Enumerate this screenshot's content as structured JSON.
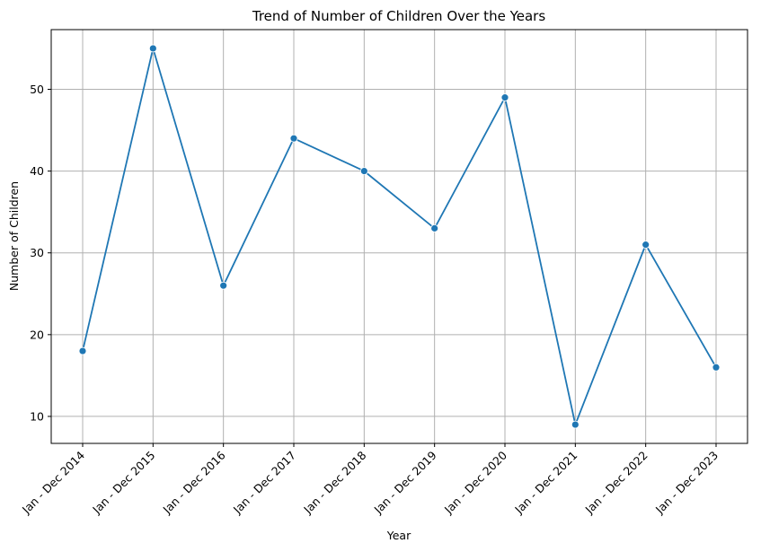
{
  "chart_data": {
    "type": "line",
    "title": "Trend of Number of Children Over the Years",
    "xlabel": "Year",
    "ylabel": "Number of Children",
    "categories": [
      "Jan - Dec 2014",
      "Jan - Dec 2015",
      "Jan - Dec 2016",
      "Jan - Dec 2017",
      "Jan - Dec 2018",
      "Jan - Dec 2019",
      "Jan - Dec 2020",
      "Jan - Dec 2021",
      "Jan - Dec 2022",
      "Jan - Dec 2023"
    ],
    "series": [
      {
        "values": [
          18,
          55,
          26,
          44,
          40,
          33,
          49,
          9,
          31,
          16
        ]
      }
    ],
    "ylim": [
      6.7,
      57.3
    ],
    "yticks": [
      10,
      20,
      30,
      40,
      50
    ],
    "ytick_labels": [
      "10",
      "20",
      "30",
      "40",
      "50"
    ],
    "grid": true,
    "legend": "none",
    "line_color": "#1f77b4",
    "grid_color": "#b0b0b0"
  }
}
